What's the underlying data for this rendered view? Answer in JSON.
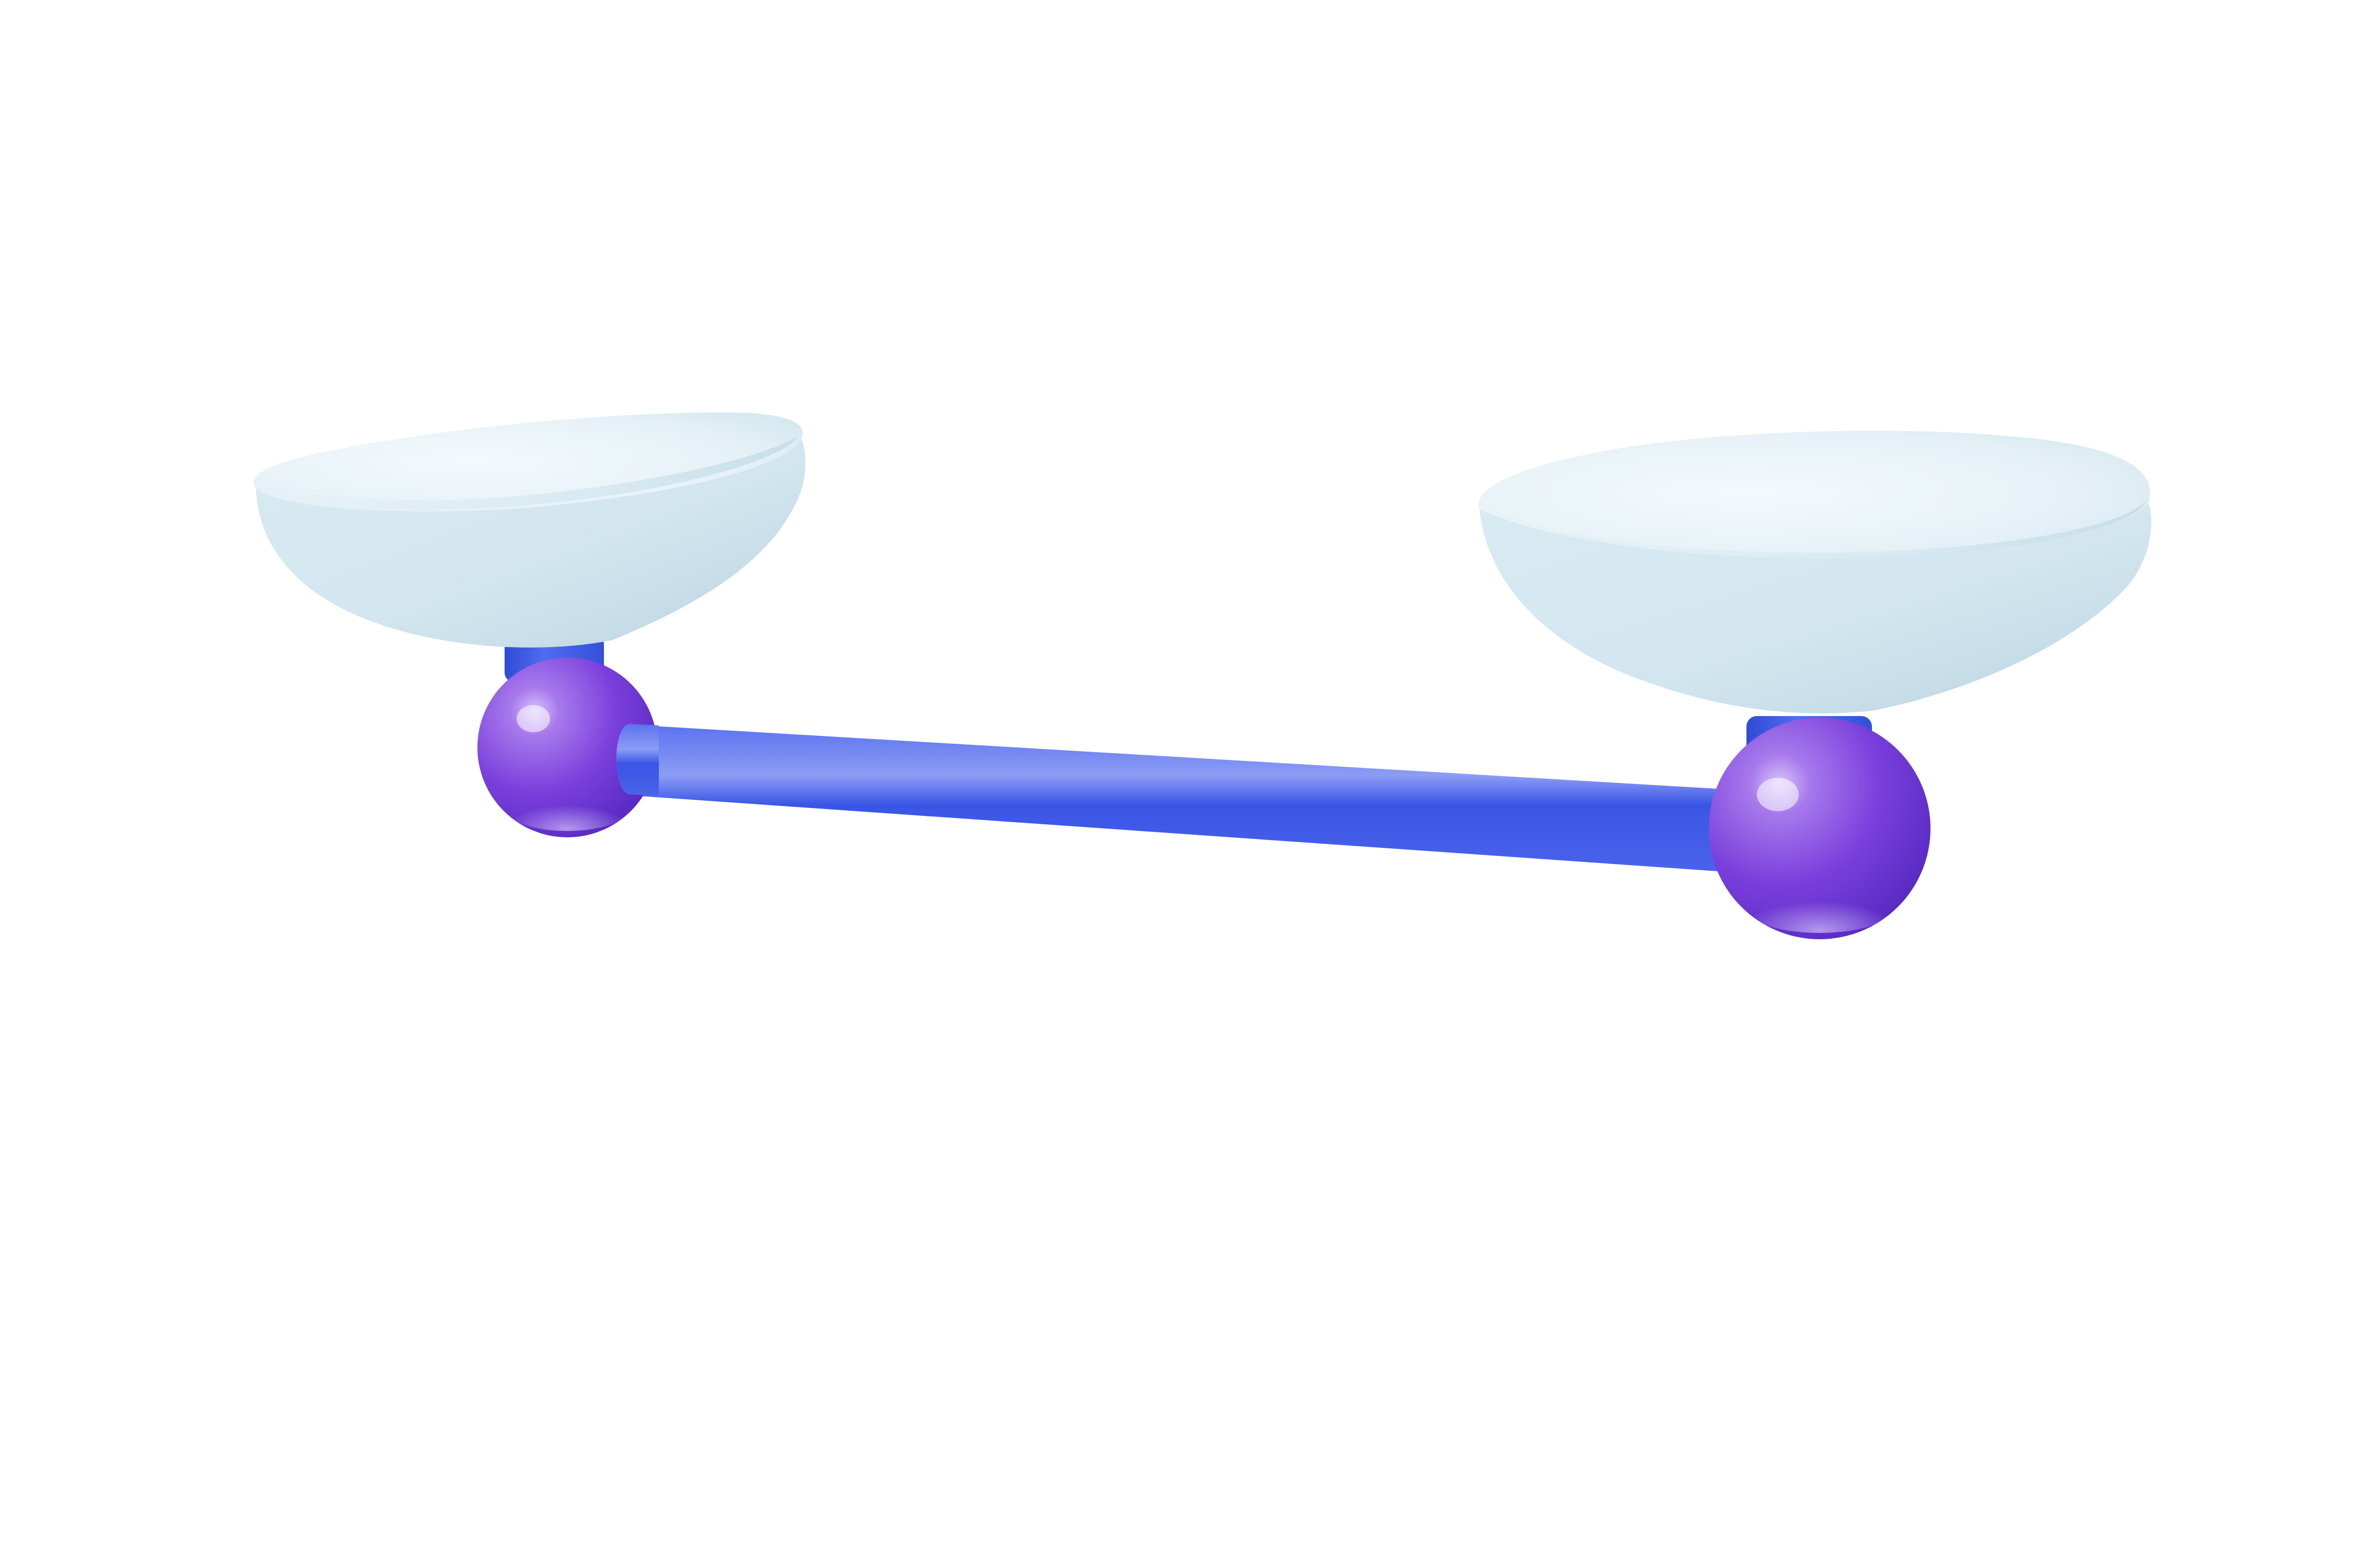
{
  "scene": {
    "background": "#ffffff",
    "object": "balance-scale-icon",
    "colors": {
      "pan_light": "#eaf4f9",
      "pan_mid": "#d3e6ef",
      "pan_shadow": "#b7d1dd",
      "rod_light": "#8c9cf5",
      "rod_mid": "#3a55e6",
      "rod_dark": "#2f44d8",
      "neck": "#3b5be0",
      "ball_light": "#c3a4f5",
      "ball_mid": "#8a4fe0",
      "ball_dark": "#5b2bc4"
    },
    "level": {
      "left_pan_raised": true
    }
  }
}
